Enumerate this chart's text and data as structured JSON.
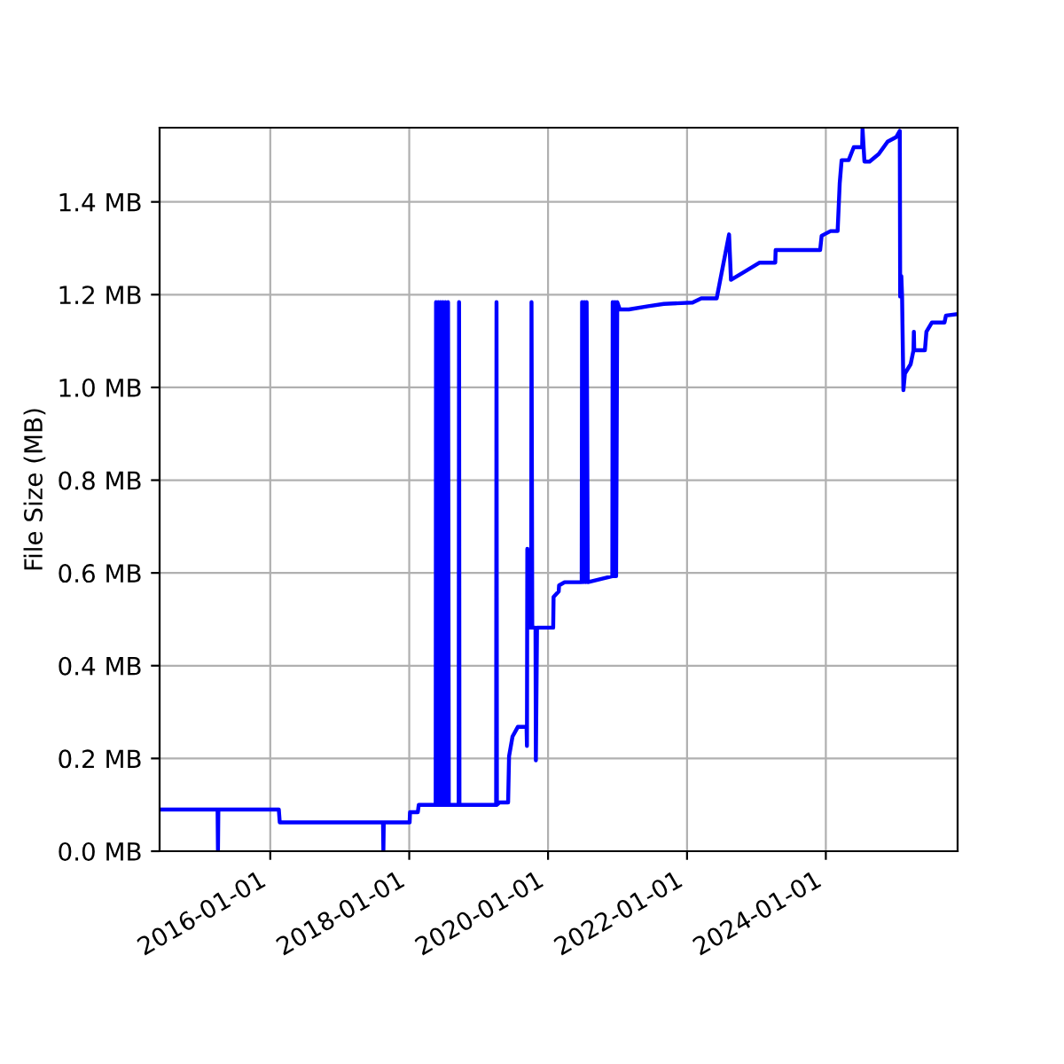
{
  "chart_data": {
    "type": "line",
    "ylabel": "File Size (MB)",
    "x": [
      "2014-05-29",
      "2015-03-30",
      "2015-04-01",
      "2015-04-03",
      "2016-02-15",
      "2016-02-20",
      "2017-08-16",
      "2017-08-18",
      "2017-08-20",
      "2018-01-03",
      "2018-01-05",
      "2018-02-15",
      "2018-02-20",
      "2018-05-20",
      "2018-05-22",
      "2018-05-28",
      "2018-06-03",
      "2018-06-09",
      "2018-06-15",
      "2018-06-21",
      "2018-06-27",
      "2018-07-03",
      "2018-07-10",
      "2018-07-16",
      "2018-07-24",
      "2018-07-28",
      "2018-09-18",
      "2018-09-20",
      "2018-09-22",
      "2019-04-03",
      "2019-04-05",
      "2019-04-07",
      "2019-04-20",
      "2019-06-05",
      "2019-06-10",
      "2019-06-28",
      "2019-07-26",
      "2019-09-10",
      "2019-09-12",
      "2019-09-14",
      "2019-09-20",
      "2019-10-04",
      "2019-10-06",
      "2019-10-10",
      "2019-10-27",
      "2019-10-29",
      "2019-11-04",
      "2020-01-28",
      "2020-01-30",
      "2020-02-26",
      "2020-02-28",
      "2020-03-28",
      "2020-06-26",
      "2020-06-28",
      "2020-07-04",
      "2020-07-10",
      "2020-07-16",
      "2020-07-22",
      "2020-07-28",
      "2020-12-04",
      "2020-12-06",
      "2020-12-12",
      "2020-12-18",
      "2020-12-24",
      "2020-12-30",
      "2021-01-12",
      "2021-03-01",
      "2021-06-10",
      "2021-09-01",
      "2022-01-30",
      "2022-03-17",
      "2022-06-06",
      "2022-08-10",
      "2022-08-20",
      "2022-11-02",
      "2023-01-18",
      "2023-04-10",
      "2023-04-12",
      "2023-12-02",
      "2023-12-10",
      "2024-01-26",
      "2024-03-03",
      "2024-03-14",
      "2024-03-24",
      "2024-04-30",
      "2024-05-27",
      "2024-07-10",
      "2024-07-12",
      "2024-07-22",
      "2024-08-18",
      "2024-10-05",
      "2024-11-21",
      "2025-01-06",
      "2025-01-24",
      "2025-01-26",
      "2025-02-01",
      "2025-02-05",
      "2025-02-12",
      "2025-02-20",
      "2025-03-22",
      "2025-04-06",
      "2025-04-08",
      "2025-04-10",
      "2025-06-05",
      "2025-06-13",
      "2025-07-12",
      "2025-09-16",
      "2025-09-24",
      "2025-11-24"
    ],
    "values": [
      0.09,
      0.09,
      0.0,
      0.09,
      0.09,
      0.062,
      0.062,
      0.0,
      0.062,
      0.062,
      0.084,
      0.084,
      0.1,
      0.1,
      1.184,
      0.1,
      1.184,
      0.1,
      1.184,
      0.1,
      1.184,
      0.1,
      1.184,
      0.1,
      1.184,
      0.1,
      0.1,
      1.184,
      0.1,
      0.1,
      1.184,
      0.1,
      0.105,
      0.105,
      0.205,
      0.247,
      0.268,
      0.268,
      0.227,
      0.652,
      0.482,
      0.482,
      1.184,
      0.482,
      0.482,
      0.196,
      0.482,
      0.482,
      0.548,
      0.56,
      0.573,
      0.58,
      0.58,
      1.184,
      0.58,
      1.184,
      0.58,
      1.184,
      0.58,
      0.593,
      1.184,
      0.593,
      1.184,
      0.593,
      1.184,
      1.168,
      1.168,
      1.175,
      1.18,
      1.183,
      1.192,
      1.192,
      1.33,
      1.232,
      1.25,
      1.269,
      1.269,
      1.296,
      1.296,
      1.327,
      1.337,
      1.337,
      1.44,
      1.49,
      1.49,
      1.518,
      1.518,
      1.558,
      1.487,
      1.487,
      1.503,
      1.53,
      1.54,
      1.553,
      1.196,
      1.24,
      1.196,
      0.994,
      1.03,
      1.05,
      1.08,
      1.12,
      1.08,
      1.08,
      1.12,
      1.14,
      1.14,
      1.155,
      1.158
    ],
    "color": "#0000ff",
    "xlim": [
      "2014-05-29",
      "2025-11-24"
    ],
    "xticks": [
      "2016-01-01",
      "2018-01-01",
      "2020-01-01",
      "2022-01-01",
      "2024-01-01"
    ],
    "ylim": [
      0,
      1.56
    ],
    "yticks": [
      {
        "value": 0,
        "label": "0.0 MB"
      },
      {
        "value": 0.2,
        "label": "0.2 MB"
      },
      {
        "value": 0.4,
        "label": "0.4 MB"
      },
      {
        "value": 0.6,
        "label": "0.6 MB"
      },
      {
        "value": 0.8,
        "label": "0.8 MB"
      },
      {
        "value": 1.0,
        "label": "1.0 MB"
      },
      {
        "value": 1.2,
        "label": "1.2 MB"
      },
      {
        "value": 1.4,
        "label": "1.4 MB"
      }
    ],
    "grid": true,
    "marker": "none",
    "line_style": "solid"
  }
}
